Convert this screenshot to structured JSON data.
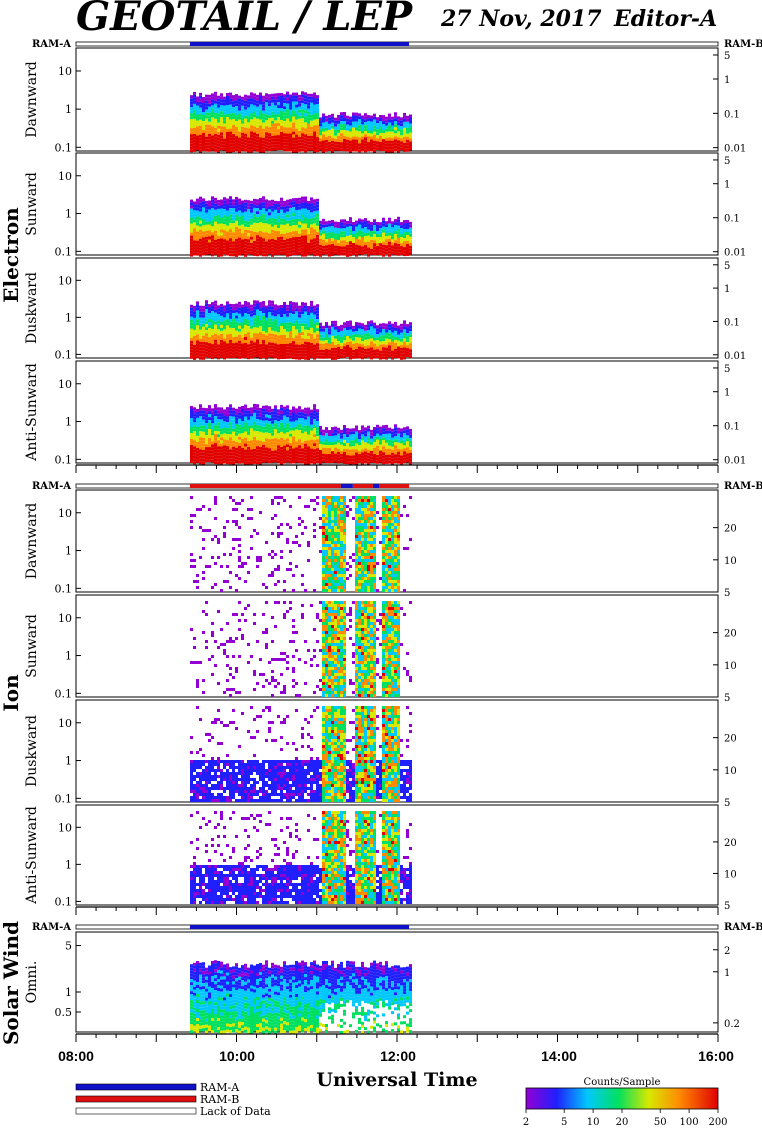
{
  "header": {
    "title": "GEOTAIL / LEP",
    "date": "27 Nov, 2017",
    "editor": "Editor-A"
  },
  "groups": {
    "electron": "Electron",
    "ion": "Ion",
    "solar_wind": "Solar Wind"
  },
  "ram": {
    "a": "RAM-A",
    "b": "RAM-B"
  },
  "x_axis": {
    "label": "Universal Time",
    "ticks": [
      "08:00",
      "10:00",
      "12:00",
      "14:00",
      "16:00"
    ]
  },
  "legend": {
    "ram_a": "RAM-A",
    "ram_b": "RAM-B",
    "lack": "Lack of Data",
    "colors": {
      "ram_a": "#1010c8",
      "ram_b": "#e01010"
    }
  },
  "colorbar": {
    "title": "Counts/Sample",
    "ticks": [
      "2",
      "5",
      "10",
      "20",
      "50",
      "100",
      "200"
    ]
  },
  "chart_data": {
    "type": "heatmap",
    "x_range_hours": [
      8,
      16
    ],
    "data_start_hour": 9.42,
    "data_end_hour": 12.15,
    "panels": [
      {
        "group": "electron",
        "name": "Dawnward",
        "left_ticks": [
          "10",
          "1",
          "0.1"
        ],
        "left_values": [
          10,
          1,
          0.1
        ],
        "left_range": [
          0.08,
          40
        ],
        "right_ticks": [
          "5",
          "1",
          "0.1",
          "0.01"
        ],
        "right_values": [
          5,
          1,
          0.1,
          0.01
        ],
        "right_range": [
          0.008,
          8
        ]
      },
      {
        "group": "electron",
        "name": "Sunward",
        "left_ticks": [
          "10",
          "1",
          "0.1"
        ],
        "left_values": [
          10,
          1,
          0.1
        ],
        "left_range": [
          0.08,
          40
        ],
        "right_ticks": [
          "5",
          "1",
          "0.1",
          "0.01"
        ],
        "right_values": [
          5,
          1,
          0.1,
          0.01
        ],
        "right_range": [
          0.008,
          8
        ]
      },
      {
        "group": "electron",
        "name": "Duskward",
        "left_ticks": [
          "10",
          "1",
          "0.1"
        ],
        "left_values": [
          10,
          1,
          0.1
        ],
        "left_range": [
          0.08,
          40
        ],
        "right_ticks": [
          "5",
          "1",
          "0.1",
          "0.01"
        ],
        "right_values": [
          5,
          1,
          0.1,
          0.01
        ],
        "right_range": [
          0.008,
          8
        ]
      },
      {
        "group": "electron",
        "name": "Anti-Sunward",
        "left_ticks": [
          "10",
          "1",
          "0.1"
        ],
        "left_values": [
          10,
          1,
          0.1
        ],
        "left_range": [
          0.08,
          40
        ],
        "right_ticks": [
          "5",
          "1",
          "0.1",
          "0.01"
        ],
        "right_values": [
          5,
          1,
          0.1,
          0.01
        ],
        "right_range": [
          0.008,
          8
        ]
      },
      {
        "group": "ion",
        "name": "Dawnward",
        "left_ticks": [
          "10",
          "1",
          "0.1"
        ],
        "left_values": [
          10,
          1,
          0.1
        ],
        "left_range": [
          0.08,
          40
        ],
        "right_ticks": [
          "20",
          "10",
          "5"
        ],
        "right_values": [
          20,
          10,
          5
        ],
        "right_range": [
          5,
          45
        ]
      },
      {
        "group": "ion",
        "name": "Sunward",
        "left_ticks": [
          "10",
          "1",
          "0.1"
        ],
        "left_values": [
          10,
          1,
          0.1
        ],
        "left_range": [
          0.08,
          40
        ],
        "right_ticks": [
          "20",
          "10",
          "5"
        ],
        "right_values": [
          20,
          10,
          5
        ],
        "right_range": [
          5,
          45
        ]
      },
      {
        "group": "ion",
        "name": "Duskward",
        "left_ticks": [
          "10",
          "1",
          "0.1"
        ],
        "left_values": [
          10,
          1,
          0.1
        ],
        "left_range": [
          0.08,
          40
        ],
        "right_ticks": [
          "20",
          "10",
          "5"
        ],
        "right_values": [
          20,
          10,
          5
        ],
        "right_range": [
          5,
          45
        ]
      },
      {
        "group": "ion",
        "name": "Anti-Sunward",
        "left_ticks": [
          "10",
          "1",
          "0.1"
        ],
        "left_values": [
          10,
          1,
          0.1
        ],
        "left_range": [
          0.08,
          40
        ],
        "right_ticks": [
          "20",
          "10",
          "5"
        ],
        "right_values": [
          20,
          10,
          5
        ],
        "right_range": [
          5,
          45
        ]
      },
      {
        "group": "solar_wind",
        "name": "Omni.",
        "left_ticks": [
          "5",
          "1",
          "0.5"
        ],
        "left_values": [
          5,
          1,
          0.5
        ],
        "left_range": [
          0.25,
          8
        ],
        "right_ticks": [
          "2",
          "1",
          "0.2"
        ],
        "right_values": [
          2,
          1,
          0.2
        ],
        "right_range": [
          0.15,
          3.5
        ]
      }
    ],
    "ram_bars": [
      {
        "group": "electron",
        "segments": [
          {
            "from": 9.42,
            "to": 12.15,
            "mode": "a"
          }
        ]
      },
      {
        "group": "ion",
        "segments": [
          {
            "from": 9.42,
            "to": 11.3,
            "mode": "b"
          },
          {
            "from": 11.3,
            "to": 11.45,
            "mode": "a"
          },
          {
            "from": 11.45,
            "to": 11.7,
            "mode": "b"
          },
          {
            "from": 11.7,
            "to": 11.78,
            "mode": "a"
          },
          {
            "from": 11.78,
            "to": 12.15,
            "mode": "b"
          }
        ]
      },
      {
        "group": "solar_wind",
        "segments": [
          {
            "from": 9.42,
            "to": 12.15,
            "mode": "a"
          }
        ]
      }
    ]
  }
}
